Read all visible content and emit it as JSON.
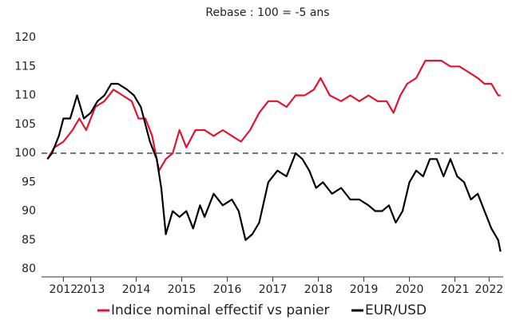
{
  "chart_data": {
    "type": "line",
    "title": "Rebase : 100 = -5 ans",
    "xlim": [
      2012.42,
      2022.56
    ],
    "ylim": [
      80,
      120
    ],
    "xticks": [
      {
        "value": 2012.9,
        "label": "2012"
      },
      {
        "value": 2013.5,
        "label": "2013"
      },
      {
        "value": 2014.5,
        "label": "2014"
      },
      {
        "value": 2015.5,
        "label": "2015"
      },
      {
        "value": 2016.5,
        "label": "2016"
      },
      {
        "value": 2017.5,
        "label": "2017"
      },
      {
        "value": 2018.5,
        "label": "2018"
      },
      {
        "value": 2019.5,
        "label": "2019"
      },
      {
        "value": 2020.5,
        "label": "2020"
      },
      {
        "value": 2021.5,
        "label": "2021"
      },
      {
        "value": 2022.25,
        "label": "2022"
      }
    ],
    "yticks": [
      80,
      85,
      90,
      95,
      100,
      105,
      110,
      115,
      120
    ],
    "reference_line": 100,
    "series": [
      {
        "name": "Indice nominal effectif vs panier",
        "color": "#e3122d",
        "x": [
          2012.55,
          2012.7,
          2012.9,
          2013.1,
          2013.25,
          2013.4,
          2013.6,
          2013.8,
          2014.0,
          2014.2,
          2014.4,
          2014.55,
          2014.7,
          2014.85,
          2015.0,
          2015.15,
          2015.3,
          2015.45,
          2015.6,
          2015.8,
          2016.0,
          2016.2,
          2016.4,
          2016.6,
          2016.8,
          2017.0,
          2017.2,
          2017.4,
          2017.6,
          2017.8,
          2018.0,
          2018.2,
          2018.4,
          2018.55,
          2018.75,
          2019.0,
          2019.2,
          2019.4,
          2019.6,
          2019.8,
          2020.0,
          2020.15,
          2020.3,
          2020.45,
          2020.65,
          2020.85,
          2021.0,
          2021.2,
          2021.4,
          2021.6,
          2021.8,
          2022.0,
          2022.15,
          2022.3,
          2022.45,
          2022.5
        ],
        "values": [
          99,
          101,
          102,
          104,
          106,
          104,
          108,
          109,
          111,
          110,
          109,
          106,
          106,
          103,
          97,
          99,
          100,
          104,
          101,
          104,
          104,
          103,
          104,
          103,
          102,
          104,
          107,
          109,
          109,
          108,
          110,
          110,
          111,
          113,
          110,
          109,
          110,
          109,
          110,
          109,
          109,
          107,
          110,
          112,
          113,
          116,
          116,
          116,
          115,
          115,
          114,
          113,
          112,
          112,
          110,
          110
        ]
      },
      {
        "name": "EUR/USD",
        "color": "#000000",
        "x": [
          2012.55,
          2012.65,
          2012.8,
          2012.9,
          2013.05,
          2013.2,
          2013.35,
          2013.5,
          2013.65,
          2013.8,
          2013.95,
          2014.1,
          2014.3,
          2014.45,
          2014.6,
          2014.8,
          2014.95,
          2015.05,
          2015.15,
          2015.3,
          2015.45,
          2015.6,
          2015.75,
          2015.9,
          2016.0,
          2016.2,
          2016.4,
          2016.6,
          2016.75,
          2016.9,
          2017.05,
          2017.2,
          2017.4,
          2017.6,
          2017.8,
          2018.0,
          2018.15,
          2018.3,
          2018.45,
          2018.6,
          2018.8,
          2019.0,
          2019.2,
          2019.4,
          2019.6,
          2019.75,
          2019.9,
          2020.05,
          2020.2,
          2020.35,
          2020.5,
          2020.65,
          2020.8,
          2020.95,
          2021.1,
          2021.25,
          2021.4,
          2021.55,
          2021.7,
          2021.85,
          2022.0,
          2022.15,
          2022.3,
          2022.45,
          2022.5
        ],
        "values": [
          99,
          100,
          103,
          106,
          106,
          110,
          106,
          107,
          109,
          110,
          112,
          112,
          111,
          110,
          108,
          102,
          99,
          94,
          86,
          90,
          89,
          90,
          87,
          91,
          89,
          93,
          91,
          92,
          90,
          85,
          86,
          88,
          95,
          97,
          96,
          100,
          99,
          97,
          94,
          95,
          93,
          94,
          92,
          92,
          91,
          90,
          90,
          91,
          88,
          90,
          95,
          97,
          96,
          99,
          99,
          96,
          99,
          96,
          95,
          92,
          93,
          90,
          87,
          85,
          83
        ]
      }
    ]
  }
}
